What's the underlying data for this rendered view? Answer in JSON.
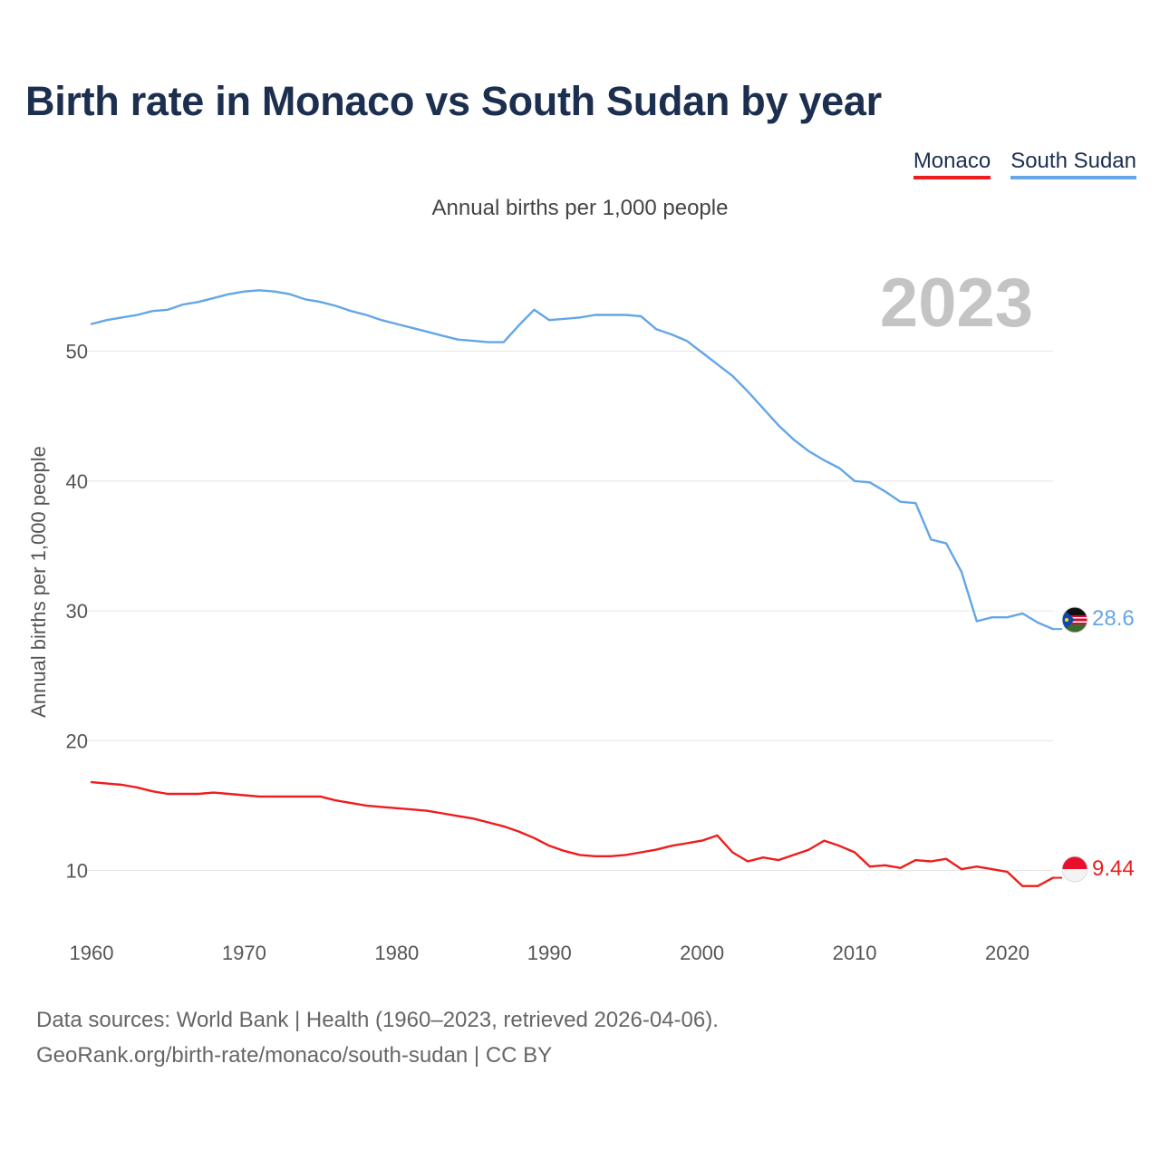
{
  "title": "Birth rate in Monaco vs South Sudan by year",
  "subtitle": "Annual births per 1,000 people",
  "legend": [
    {
      "label": "Monaco",
      "color": "#ee1c1c"
    },
    {
      "label": "South Sudan",
      "color": "#64a6e6"
    }
  ],
  "source": {
    "line1": "Data sources: World Bank | Health (1960–2023, retrieved 2026-04-06).",
    "line2": "GeoRank.org/birth-rate/monaco/south-sudan | CC BY"
  },
  "chart_data": {
    "type": "line",
    "title": "Birth rate in Monaco vs South Sudan by year",
    "ylabel": "Annual births per 1,000 people",
    "xlabel": "",
    "xlim": [
      1960,
      2023
    ],
    "ylim": [
      5.5,
      58
    ],
    "x_ticks": [
      1960,
      1970,
      1980,
      1990,
      2000,
      2010,
      2020
    ],
    "y_ticks": [
      10,
      20,
      30,
      40,
      50
    ],
    "grid": "horizontal",
    "current_year_label": "2023",
    "x": [
      1960,
      1961,
      1962,
      1963,
      1964,
      1965,
      1966,
      1967,
      1968,
      1969,
      1970,
      1971,
      1972,
      1973,
      1974,
      1975,
      1976,
      1977,
      1978,
      1979,
      1980,
      1981,
      1982,
      1983,
      1984,
      1985,
      1986,
      1987,
      1988,
      1989,
      1990,
      1991,
      1992,
      1993,
      1994,
      1995,
      1996,
      1997,
      1998,
      1999,
      2000,
      2001,
      2002,
      2003,
      2004,
      2005,
      2006,
      2007,
      2008,
      2009,
      2010,
      2011,
      2012,
      2013,
      2014,
      2015,
      2016,
      2017,
      2018,
      2019,
      2020,
      2021,
      2022,
      2023
    ],
    "series": [
      {
        "name": "Monaco",
        "color": "#ee1c1c",
        "end_label": "9.44",
        "values": [
          16.8,
          16.7,
          16.6,
          16.4,
          16.1,
          15.9,
          15.9,
          15.9,
          16.0,
          15.9,
          15.8,
          15.7,
          15.7,
          15.7,
          15.7,
          15.7,
          15.4,
          15.2,
          15.0,
          14.9,
          14.8,
          14.7,
          14.6,
          14.4,
          14.2,
          14.0,
          13.7,
          13.4,
          13.0,
          12.5,
          11.9,
          11.5,
          11.2,
          11.1,
          11.1,
          11.2,
          11.4,
          11.6,
          11.9,
          12.1,
          12.3,
          12.7,
          11.4,
          10.7,
          11.0,
          10.8,
          11.2,
          11.6,
          12.3,
          11.9,
          11.4,
          10.3,
          10.4,
          10.2,
          10.8,
          10.7,
          10.9,
          10.1,
          10.3,
          10.1,
          9.9,
          8.8,
          8.8,
          9.44
        ]
      },
      {
        "name": "South Sudan",
        "color": "#64a6e6",
        "end_label": "28.6",
        "values": [
          52.1,
          52.4,
          52.6,
          52.8,
          53.1,
          53.2,
          53.6,
          53.8,
          54.1,
          54.4,
          54.6,
          54.7,
          54.6,
          54.4,
          54.0,
          53.8,
          53.5,
          53.1,
          52.8,
          52.4,
          52.1,
          51.8,
          51.5,
          51.2,
          50.9,
          50.8,
          50.7,
          50.7,
          52.0,
          53.2,
          52.4,
          52.5,
          52.6,
          52.8,
          52.8,
          52.8,
          52.7,
          51.7,
          51.3,
          50.8,
          49.9,
          49.0,
          48.1,
          46.9,
          45.6,
          44.3,
          43.2,
          42.3,
          41.6,
          41.0,
          40.0,
          39.9,
          39.2,
          38.4,
          38.3,
          35.5,
          35.2,
          33.0,
          29.2,
          29.5,
          29.5,
          29.8,
          29.1,
          28.6
        ]
      }
    ]
  }
}
